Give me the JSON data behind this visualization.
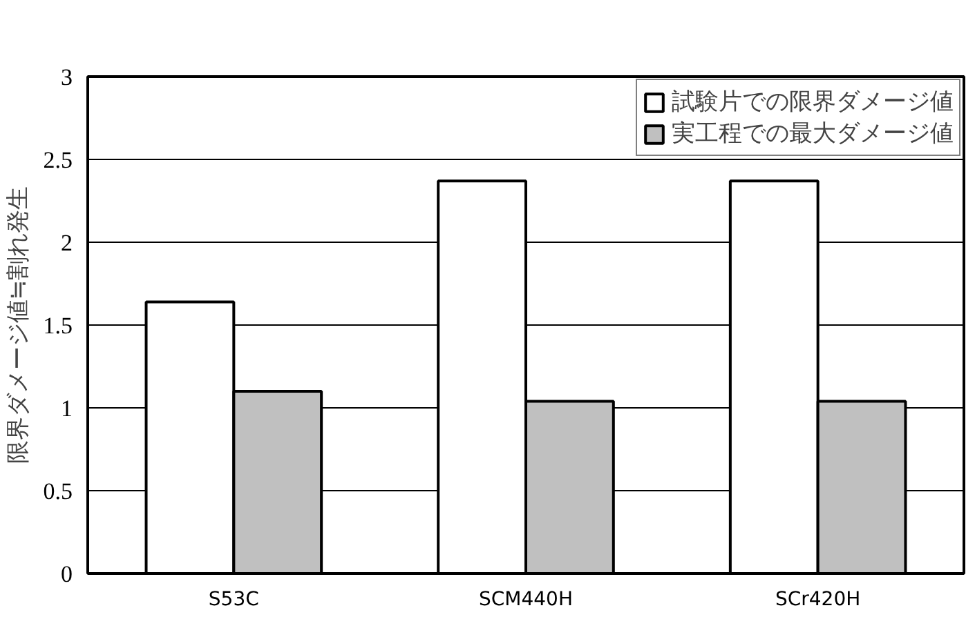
{
  "chart_data": {
    "type": "bar",
    "ylabel": "限界ダメージ値≒割れ発生",
    "categories": [
      "S53C",
      "SCM440H",
      "SCr420H"
    ],
    "series": [
      {
        "name": "試験片での限界ダメージ値",
        "color": "#ffffff",
        "values": [
          1.64,
          2.37,
          2.37
        ]
      },
      {
        "name": "実工程での最大ダメージ値",
        "color": "#c0c0c0",
        "values": [
          1.1,
          1.04,
          1.04
        ]
      }
    ],
    "ylim": [
      0,
      3
    ],
    "yticks": [
      0,
      0.5,
      1,
      1.5,
      2,
      2.5,
      3
    ],
    "grid": "y",
    "legend": "top right"
  }
}
